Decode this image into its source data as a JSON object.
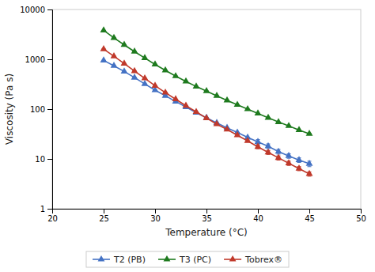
{
  "chart_data": {
    "type": "line",
    "xlabel": "Temperature (°C)",
    "ylabel": "Viscosity (Pa s)",
    "log": "y",
    "grid": false,
    "legend": "bottom",
    "xlim": [
      20,
      50
    ],
    "ylim": [
      1,
      10000
    ],
    "xticks": [
      20,
      25,
      30,
      35,
      40,
      45,
      50
    ],
    "yticks": [
      1,
      10,
      100,
      1000,
      10000
    ],
    "x": [
      25,
      26,
      27,
      28,
      29,
      30,
      31,
      32,
      33,
      34,
      35,
      36,
      37,
      38,
      39,
      40,
      41,
      42,
      43,
      44,
      45
    ],
    "series": [
      {
        "name": "T2 (PB)",
        "color": "#4472c4",
        "marker": "triangle",
        "values": [
          950,
          740,
          570,
          430,
          320,
          240,
          185,
          142,
          110,
          85,
          67,
          53,
          42,
          34,
          27,
          22,
          18,
          14,
          11.5,
          9.5,
          8
        ],
        "yerr": [
          0,
          0,
          0,
          0,
          0,
          0,
          0,
          0,
          0,
          0,
          0,
          0,
          0,
          0,
          0,
          2.5,
          2,
          1.5,
          1.2,
          1.0,
          1.0
        ]
      },
      {
        "name": "T3 (PC)",
        "color": "#1e7a1e",
        "marker": "triangle",
        "values": [
          3800,
          2700,
          1950,
          1430,
          1060,
          790,
          600,
          460,
          360,
          285,
          230,
          185,
          150,
          122,
          100,
          82,
          67,
          55,
          46,
          38,
          32
        ],
        "yerr": [
          0,
          0,
          0,
          0,
          0,
          0,
          0,
          0,
          0,
          0,
          0,
          0,
          0,
          0,
          0,
          0,
          0,
          0,
          0,
          0,
          0
        ]
      },
      {
        "name": "Tobrex®",
        "color": "#c0392b",
        "marker": "triangle",
        "values": [
          1600,
          1150,
          820,
          580,
          415,
          295,
          215,
          158,
          117,
          88,
          66,
          50,
          39,
          30,
          23,
          17.5,
          13.5,
          10.5,
          8.2,
          6.4,
          5.0
        ],
        "yerr": [
          0,
          0,
          0,
          0,
          0,
          0,
          0,
          0,
          0,
          0,
          0,
          0,
          0,
          0,
          0,
          1.5,
          1.2,
          1.0,
          0.8,
          0.6,
          0.5
        ]
      }
    ]
  }
}
